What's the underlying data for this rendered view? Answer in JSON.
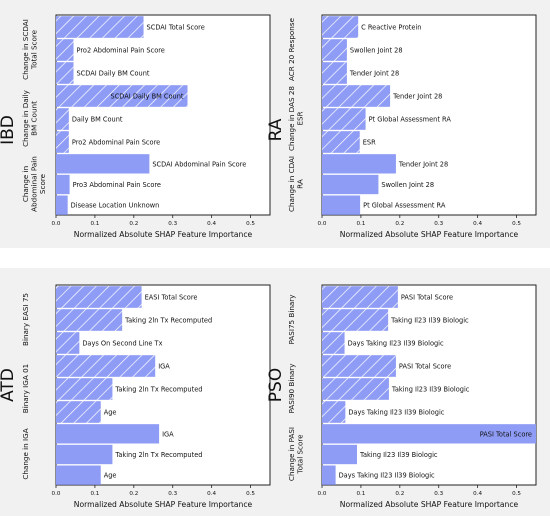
{
  "colors": {
    "bar": "#8e9cf5",
    "hatch": "#ffffff",
    "axis": "#222222",
    "band": "#f1f1f1"
  },
  "xlabel": "Normalized Absolute SHAP Feature Importance",
  "chart_data": [
    {
      "type": "bar",
      "orientation": "horizontal",
      "disease": "IBD",
      "xlabel": "Normalized Absolute SHAP Feature Importance",
      "xlim": [
        0,
        0.55
      ],
      "xticks": [
        "0.0",
        "0.1",
        "0.2",
        "0.3",
        "0.4",
        "0.5"
      ],
      "groups": [
        {
          "label": "Change in SCDAI Total Score",
          "hatched": true,
          "bars": [
            {
              "label": "SCDAI Total Score",
              "value": 0.225
            },
            {
              "label": "Pro2 Abdominal Pain Score",
              "value": 0.045
            },
            {
              "label": "SCDAI Daily BM Count",
              "value": 0.045
            }
          ]
        },
        {
          "label": "Change in Daily BM Count",
          "hatched": true,
          "bars": [
            {
              "label": "SCDAI Daily BM Count",
              "value": 0.338
            },
            {
              "label": "Daily BM Count",
              "value": 0.033
            },
            {
              "label": "Pro2 Abdominal Pain Score",
              "value": 0.033
            }
          ]
        },
        {
          "label": "Change in Abdominal Pain Score",
          "hatched": false,
          "bars": [
            {
              "label": "SCDAI Abdominal Pain Score",
              "value": 0.24
            },
            {
              "label": "Pro3 Abdominal Pain Score",
              "value": 0.035
            },
            {
              "label": "Disease Location Unknown",
              "value": 0.03
            }
          ]
        }
      ]
    },
    {
      "type": "bar",
      "orientation": "horizontal",
      "disease": "RA",
      "xlabel": "Normalized Absolute SHAP Feature Importance",
      "xlim": [
        0,
        0.55
      ],
      "xticks": [
        "0.0",
        "0.1",
        "0.2",
        "0.3",
        "0.4",
        "0.5"
      ],
      "groups": [
        {
          "label": "ACR 20 Response",
          "hatched": true,
          "bars": [
            {
              "label": "C Reactive Protein",
              "value": 0.093
            },
            {
              "label": "Swollen Joint 28",
              "value": 0.064
            },
            {
              "label": "Tender Joint 28",
              "value": 0.064
            }
          ]
        },
        {
          "label": "Change in DAS 28 ESR",
          "hatched": true,
          "bars": [
            {
              "label": "Tender Joint 28",
              "value": 0.175
            },
            {
              "label": "Pt Global Assessment RA",
              "value": 0.112
            },
            {
              "label": "ESR",
              "value": 0.097
            }
          ]
        },
        {
          "label": "Change in CDAI RA",
          "hatched": false,
          "bars": [
            {
              "label": "Tender Joint 28",
              "value": 0.19
            },
            {
              "label": "Swollen Joint 28",
              "value": 0.145
            },
            {
              "label": "Pt Global Assessment RA",
              "value": 0.098
            }
          ]
        }
      ]
    },
    {
      "type": "bar",
      "orientation": "horizontal",
      "disease": "ATD",
      "xlabel": "Normalized Absolute SHAP Feature Importance",
      "xlim": [
        0,
        0.55
      ],
      "xticks": [
        "0.0",
        "0.1",
        "0.2",
        "0.3",
        "0.4",
        "0.5"
      ],
      "groups": [
        {
          "label": "Binary EASI 75",
          "hatched": true,
          "bars": [
            {
              "label": "EASI Total Score",
              "value": 0.22
            },
            {
              "label": "Taking 2ln Tx Recomputed",
              "value": 0.17
            },
            {
              "label": "Days On Second Line Tx",
              "value": 0.06
            }
          ]
        },
        {
          "label": "Binary IGA 01",
          "hatched": true,
          "bars": [
            {
              "label": "IGA",
              "value": 0.255
            },
            {
              "label": "Taking 2ln Tx Recomputed",
              "value": 0.145
            },
            {
              "label": "Age",
              "value": 0.115
            }
          ]
        },
        {
          "label": "Change in IGA",
          "hatched": false,
          "bars": [
            {
              "label": "IGA",
              "value": 0.265
            },
            {
              "label": "Taking 2ln Tx Recomputed",
              "value": 0.145
            },
            {
              "label": "Age",
              "value": 0.115
            }
          ]
        }
      ]
    },
    {
      "type": "bar",
      "orientation": "horizontal",
      "disease": "PSO",
      "xlabel": "Normalized Absolute SHAP Feature Importance",
      "xlim": [
        0,
        0.55
      ],
      "xticks": [
        "0.0",
        "0.1",
        "0.2",
        "0.3",
        "0.4",
        "0.5"
      ],
      "groups": [
        {
          "label": "PASI75 Binary",
          "hatched": true,
          "bars": [
            {
              "label": "PASI Total Score",
              "value": 0.195
            },
            {
              "label": "Taking Il23 Il39 Biologic",
              "value": 0.17
            },
            {
              "label": "Days Taking Il23 Il39 Biologic",
              "value": 0.058
            }
          ]
        },
        {
          "label": "PASI90 Binary",
          "hatched": true,
          "bars": [
            {
              "label": "PASI Total Score",
              "value": 0.19
            },
            {
              "label": "Taking Il23 Il39 Biologic",
              "value": 0.172
            },
            {
              "label": "Days Taking Il23 Il39 Biologic",
              "value": 0.06
            }
          ]
        },
        {
          "label": "Change in PASI Total Score",
          "hatched": false,
          "bars": [
            {
              "label": "PASI Total Score",
              "value": 0.55
            },
            {
              "label": "Taking Il23 Il39 Biologic",
              "value": 0.09
            },
            {
              "label": "Days Taking Il23 Il39 Biologic",
              "value": 0.035
            }
          ]
        }
      ]
    }
  ]
}
